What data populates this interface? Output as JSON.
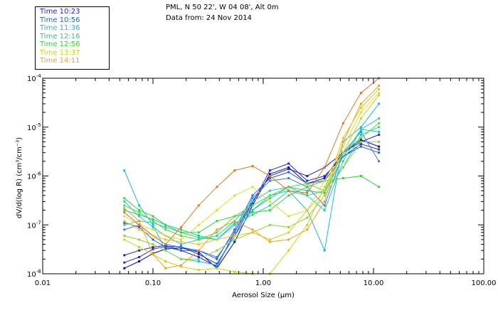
{
  "header": {
    "station": "PML, N 50 22', W 04 08', Alt 0m",
    "date_line": "Data from: 24 Nov 2014"
  },
  "legend": {
    "items": [
      {
        "label": "Time 10:23",
        "color": "#1f1fd6"
      },
      {
        "label": "Time 10:56",
        "color": "#1f63d8"
      },
      {
        "label": "Time 11:36",
        "color": "#19b7e6"
      },
      {
        "label": "Time 12:16",
        "color": "#19cf8f"
      },
      {
        "label": "Time 12:56",
        "color": "#33d633"
      },
      {
        "label": "Time 13:37",
        "color": "#c7d61a"
      },
      {
        "label": "Time 14:11",
        "color": "#e6a61a"
      }
    ]
  },
  "chart_data": {
    "type": "line",
    "xscale": "log",
    "yscale": "log",
    "xlim": [
      0.01,
      100
    ],
    "ylim": [
      1e-08,
      0.0001
    ],
    "xlabel": "Aerosol Size (μm)",
    "ylabel": "dV/d(log R) (cm³/cm⁻³)",
    "x_ticks": [
      {
        "v": 0.01,
        "t": "0.01"
      },
      {
        "v": 0.1,
        "t": "0.10"
      },
      {
        "v": 1,
        "t": "1.00"
      },
      {
        "v": 10,
        "t": "10.00"
      },
      {
        "v": 100,
        "t": "100.00"
      }
    ],
    "y_ticks": [
      {
        "v": 1e-08,
        "m": "10",
        "e": "-8"
      },
      {
        "v": 1e-07,
        "m": "10",
        "e": "-7"
      },
      {
        "v": 1e-06,
        "m": "10",
        "e": "-6"
      },
      {
        "v": 1e-05,
        "m": "10",
        "e": "-5"
      },
      {
        "v": 0.0001,
        "m": "10",
        "e": "-4"
      }
    ],
    "x": [
      0.055,
      0.075,
      0.1,
      0.13,
      0.18,
      0.26,
      0.38,
      0.55,
      0.8,
      1.15,
      1.7,
      2.5,
      3.6,
      5.3,
      7.7,
      11.2
    ],
    "series": [
      {
        "color": "#1f1fd6",
        "values": [
          2.4e-08,
          3e-08,
          3.5e-08,
          3.8e-08,
          3e-08,
          2.2e-08,
          1.4e-08,
          7e-08,
          3e-07,
          1e-06,
          1.4e-06,
          1e-06,
          1.5e-06,
          3e-06,
          5e-06,
          7e-06
        ]
      },
      {
        "color": "#2a2ac8",
        "values": [
          1.7e-08,
          2.2e-08,
          3.2e-08,
          3.6e-08,
          3.6e-08,
          2.5e-08,
          1.6e-08,
          6e-08,
          2.8e-07,
          1.3e-06,
          1.8e-06,
          8e-07,
          1e-06,
          2.5e-06,
          4.5e-06,
          3.5e-06
        ]
      },
      {
        "color": "#0a0aa0",
        "values": [
          1.3e-08,
          1.8e-08,
          2.6e-08,
          3.2e-08,
          3.4e-08,
          2.8e-08,
          1.3e-08,
          4.5e-08,
          2.5e-07,
          1.1e-06,
          1.5e-06,
          7e-07,
          9e-07,
          3e-06,
          5.5e-06,
          4e-06
        ]
      },
      {
        "color": "#1f63d8",
        "values": [
          1.1e-07,
          9e-08,
          5e-08,
          3.5e-08,
          3e-08,
          3e-08,
          2e-08,
          8e-08,
          4e-07,
          9e-07,
          1.2e-06,
          7e-07,
          8e-07,
          2.5e-06,
          4e-06,
          3e-06
        ]
      },
      {
        "color": "#3d7ae6",
        "values": [
          8e-08,
          1e-07,
          6e-08,
          4e-08,
          3.5e-08,
          3e-08,
          2.2e-08,
          7e-08,
          3.5e-07,
          8e-07,
          9e-07,
          6e-07,
          2.5e-07,
          3e-06,
          8e-06,
          2e-06
        ]
      },
      {
        "color": "#19b7e6",
        "values": [
          1.3e-06,
          2.5e-07,
          1e-07,
          3e-08,
          2e-08,
          1.8e-08,
          1.5e-08,
          6e-08,
          2e-07,
          4e-07,
          5e-07,
          2e-07,
          3e-08,
          5e-06,
          1e-05,
          3e-05
        ]
      },
      {
        "color": "#1fc8d6",
        "values": [
          3e-07,
          1.5e-07,
          9e-08,
          6e-08,
          4e-08,
          5e-08,
          6e-08,
          1.2e-07,
          3e-07,
          5e-07,
          6e-07,
          4e-07,
          2e-07,
          2e-06,
          9e-06,
          1.5e-05
        ]
      },
      {
        "color": "#19cf8f",
        "values": [
          2e-07,
          1.6e-07,
          1.3e-07,
          1e-07,
          8e-08,
          6e-08,
          5e-08,
          1e-07,
          2e-07,
          3.5e-07,
          6e-07,
          5e-07,
          4.5e-07,
          2.5e-06,
          9e-06,
          8e-06
        ]
      },
      {
        "color": "#22d2b0",
        "values": [
          1e-07,
          1.2e-07,
          1.1e-07,
          9e-08,
          7e-08,
          5.5e-08,
          5e-08,
          1.1e-07,
          1.6e-07,
          2.5e-07,
          5e-07,
          4e-07,
          5e-07,
          1.5e-06,
          7e-06,
          1e-05
        ]
      },
      {
        "color": "#33d633",
        "values": [
          3.5e-07,
          2e-07,
          1.5e-07,
          1e-07,
          7e-08,
          7e-08,
          1.2e-07,
          1.5e-07,
          1.8e-07,
          2e-07,
          4e-07,
          6e-07,
          8e-07,
          9e-07,
          1e-06,
          6e-07
        ]
      },
      {
        "color": "#5ad92e",
        "values": [
          2.5e-07,
          1.8e-07,
          1.2e-07,
          8e-08,
          6e-08,
          5e-08,
          7e-08,
          1.5e-07,
          2.5e-07,
          4e-07,
          6e-07,
          7e-07,
          5e-07,
          3e-06,
          6e-06,
          1.2e-05
        ]
      },
      {
        "color": "#8ed62a",
        "values": [
          6e-08,
          5e-08,
          4e-08,
          3e-08,
          2e-08,
          2e-08,
          3e-08,
          5e-08,
          7e-08,
          1e-07,
          9e-08,
          1.4e-07,
          4e-07,
          1.5e-06,
          5e-06,
          5e-06
        ]
      },
      {
        "color": "#c7d61a",
        "values": [
          5e-08,
          3.5e-08,
          2.5e-08,
          1.8e-08,
          1.4e-08,
          1.2e-08,
          1.3e-08,
          1.1e-08,
          9e-09,
          1e-08,
          3e-08,
          1e-07,
          6e-07,
          3e-06,
          1.5e-05,
          4.5e-05
        ]
      },
      {
        "color": "#d6e22a",
        "values": [
          1.5e-07,
          1e-07,
          8e-08,
          6e-08,
          5e-08,
          1e-07,
          2e-07,
          4e-07,
          6e-07,
          3e-07,
          1.5e-07,
          2e-07,
          8e-07,
          4e-06,
          2e-05,
          5e-05
        ]
      },
      {
        "color": "#e6a61a",
        "values": [
          2.2e-07,
          1.2e-07,
          2.5e-08,
          1.3e-08,
          1.5e-08,
          3e-08,
          8e-08,
          1.2e-07,
          8e-08,
          4.5e-08,
          5e-08,
          8e-08,
          3e-07,
          5e-06,
          3e-05,
          7e-05
        ]
      },
      {
        "color": "#e0761a",
        "values": [
          1.8e-07,
          1e-07,
          6e-08,
          4e-08,
          9e-08,
          2.5e-07,
          6e-07,
          1.3e-06,
          1.6e-06,
          1e-06,
          5e-07,
          4.5e-07,
          1.5e-06,
          1.2e-05,
          5e-05,
          0.0001
        ]
      },
      {
        "color": "#f0c21a",
        "values": [
          1.2e-07,
          8e-08,
          6e-08,
          5e-08,
          4.5e-08,
          4e-08,
          5e-08,
          6e-08,
          7e-08,
          5e-08,
          7e-08,
          2e-07,
          5e-07,
          6e-06,
          2.5e-05,
          6e-05
        ]
      }
    ]
  }
}
